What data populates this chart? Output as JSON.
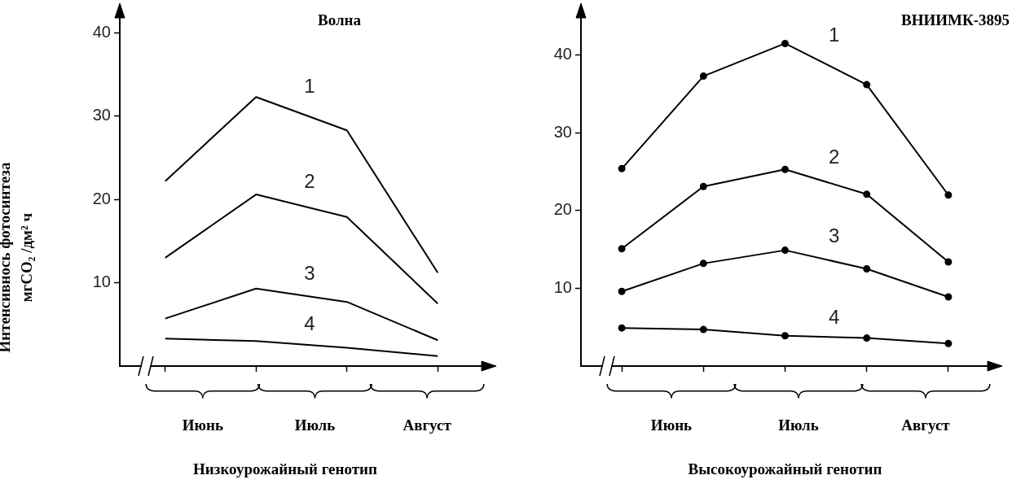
{
  "chart_data": [
    {
      "type": "line",
      "title": "Волна",
      "xlabel": "Низкоурожайный генотип",
      "ylabel": "Интенсивнось фотосинтеза\nмгCO₂ /дм² ч",
      "categories": [
        null,
        null,
        null,
        null
      ],
      "annotations": [
        "Июнь",
        "Июль",
        "Август"
      ],
      "ylim": [
        0,
        42
      ],
      "yticks": [
        10,
        20,
        30,
        40
      ],
      "marker": "none",
      "line_style": "solid",
      "series": [
        {
          "name": "1",
          "color": "#000000",
          "values": [
            22.2,
            32.3,
            28.3,
            11.2
          ]
        },
        {
          "name": "2",
          "color": "#000000",
          "values": [
            13.0,
            20.6,
            17.9,
            7.5
          ]
        },
        {
          "name": "3",
          "color": "#000000",
          "values": [
            5.7,
            9.3,
            7.7,
            3.1
          ]
        },
        {
          "name": "4",
          "color": "#000000",
          "values": [
            3.3,
            3.0,
            2.2,
            1.2
          ]
        }
      ]
    },
    {
      "type": "line",
      "title": "ВНИИМК-3895",
      "xlabel": "Высокоурожайный генотип",
      "categories": [
        null,
        null,
        null,
        null,
        null
      ],
      "annotations": [
        "Июнь",
        "Июль",
        "Август"
      ],
      "ylim": [
        0,
        45
      ],
      "yticks": [
        10,
        20,
        30,
        40
      ],
      "marker": "circle",
      "line_style": "solid",
      "series": [
        {
          "name": "1",
          "color": "#000000",
          "values": [
            25.4,
            37.3,
            41.5,
            36.2,
            22.0
          ]
        },
        {
          "name": "2",
          "color": "#000000",
          "values": [
            15.1,
            23.1,
            25.3,
            22.1,
            13.4
          ]
        },
        {
          "name": "3",
          "color": "#000000",
          "values": [
            9.6,
            13.2,
            14.9,
            12.5,
            8.9
          ]
        },
        {
          "name": "4",
          "color": "#000000",
          "values": [
            4.9,
            4.7,
            3.9,
            3.6,
            2.9
          ]
        }
      ]
    }
  ]
}
